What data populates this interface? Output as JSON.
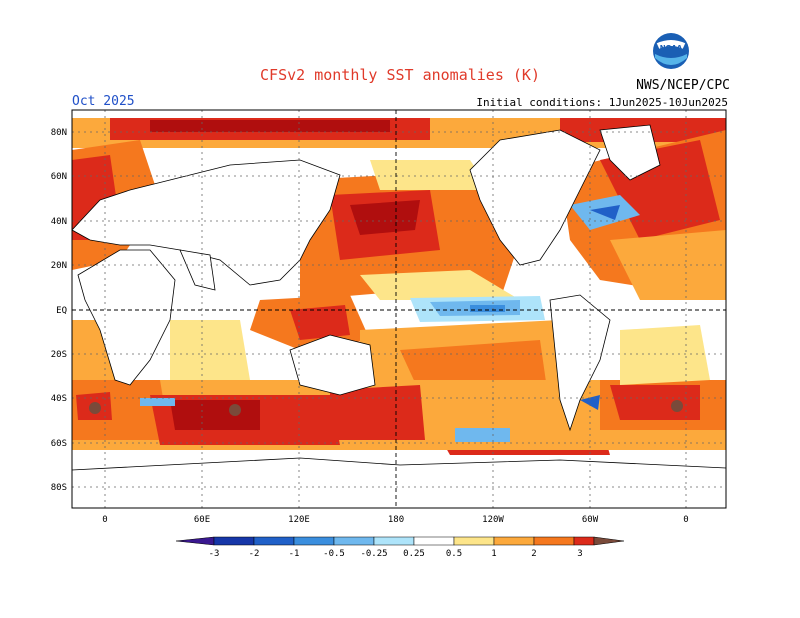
{
  "header": {
    "title": "CFSv2 monthly SST anomalies (K)",
    "month": "Oct 2025",
    "initial_conditions": "Initial conditions: 1Jun2025-10Jun2025",
    "agency": "NWS/NCEP/CPC",
    "logo_text": "NOAA"
  },
  "map": {
    "lat_labels": [
      "80N",
      "60N",
      "40N",
      "20N",
      "EQ",
      "20S",
      "40S",
      "60S",
      "80S"
    ],
    "lon_labels": [
      "0",
      "60E",
      "120E",
      "180",
      "120W",
      "60W",
      "0"
    ],
    "colors": {
      "ocean_neutral": "#ffffff",
      "pos_025": "#fde58a",
      "pos_05": "#fca93c",
      "pos_1": "#f5781e",
      "pos_2": "#dc2a1a",
      "pos_3": "#b00e0e",
      "pos_gt3": "#7a4a3a",
      "neg_025": "#aee4fa",
      "neg_05": "#6fb8ee",
      "neg_1": "#3a8ede",
      "neg_2": "#2060c8",
      "neg_3": "#1636a8",
      "neg_lt3": "#3a1890"
    }
  },
  "colorbar": {
    "labels": [
      "-3",
      "-2",
      "-1",
      "-0.5",
      "-0.25",
      "0.25",
      "0.5",
      "1",
      "2",
      "3"
    ]
  }
}
